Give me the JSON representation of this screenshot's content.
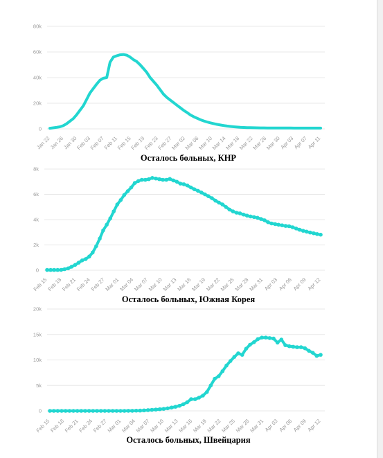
{
  "style": {
    "line_color": "#22d6d0"
  },
  "chart_data": [
    {
      "type": "line",
      "title": "Осталось больных, КНР",
      "y_ticks": [
        "0",
        "20k",
        "40k",
        "60k",
        "80k"
      ],
      "ylim": [
        0,
        80000
      ],
      "x_ticks": [
        "Jan 22",
        "Jan 26",
        "Jan 30",
        "Feb 03",
        "Feb 07",
        "Feb 11",
        "Feb 15",
        "Feb 19",
        "Feb 23",
        "Feb 27",
        "Mar 02",
        "Mar 06",
        "Mar 10",
        "Mar 14",
        "Mar 18",
        "Mar 22",
        "Mar 26",
        "Mar 30",
        "Apr 03",
        "Apr 07",
        "Apr 11"
      ],
      "markers": false,
      "grid": true,
      "series": [
        {
          "values": [
            500,
            800,
            1200,
            1600,
            2500,
            4000,
            6000,
            8000,
            11000,
            14500,
            18000,
            23000,
            28000,
            31500,
            35000,
            38000,
            39500,
            40000,
            52000,
            56000,
            57000,
            57800,
            58000,
            57500,
            56000,
            54000,
            52500,
            50000,
            47000,
            44000,
            40000,
            37000,
            34000,
            30500,
            27000,
            24500,
            22500,
            20500,
            18500,
            16500,
            14500,
            12800,
            11000,
            9500,
            8300,
            7200,
            6200,
            5400,
            4700,
            4100,
            3500,
            3000,
            2600,
            2200,
            1900,
            1600,
            1400,
            1200,
            1100,
            1000,
            900,
            850,
            800,
            780,
            750,
            720,
            700,
            680,
            670,
            660,
            650,
            640,
            630,
            620,
            610,
            600,
            600,
            600,
            600,
            600,
            600,
            600
          ]
        }
      ]
    },
    {
      "type": "line",
      "title": "Осталось больных, Южная Корея",
      "y_ticks": [
        "0",
        "2k",
        "4k",
        "6k",
        "8k"
      ],
      "ylim": [
        0,
        8000
      ],
      "x_ticks": [
        "Feb 15",
        "Feb 18",
        "Feb 21",
        "Feb 24",
        "Feb 27",
        "Mar 01",
        "Mar 04",
        "Mar 07",
        "Mar 10",
        "Mar 13",
        "Mar 16",
        "Mar 19",
        "Mar 22",
        "Mar 25",
        "Mar 28",
        "Mar 31",
        "Apr 03",
        "Apr 06",
        "Apr 09",
        "Apr 12"
      ],
      "markers": true,
      "grid": true,
      "series": [
        {
          "values": [
            20,
            20,
            20,
            20,
            30,
            80,
            150,
            280,
            420,
            600,
            780,
            880,
            1080,
            1400,
            1900,
            2500,
            3150,
            3600,
            4100,
            4650,
            5200,
            5550,
            5950,
            6250,
            6550,
            6900,
            7050,
            7150,
            7150,
            7200,
            7300,
            7250,
            7200,
            7150,
            7150,
            7220,
            7100,
            7000,
            6850,
            6800,
            6700,
            6550,
            6400,
            6280,
            6150,
            6000,
            5850,
            5700,
            5500,
            5350,
            5200,
            5000,
            4800,
            4650,
            4550,
            4500,
            4400,
            4320,
            4250,
            4200,
            4150,
            4050,
            3950,
            3800,
            3700,
            3650,
            3600,
            3550,
            3500,
            3480,
            3400,
            3300,
            3200,
            3120,
            3050,
            2980,
            2920,
            2860,
            2810
          ]
        }
      ]
    },
    {
      "type": "line",
      "title": "Осталось больных, Швейцария",
      "y_ticks": [
        "0",
        "5k",
        "10k",
        "15k",
        "20k"
      ],
      "ylim": [
        0,
        20000
      ],
      "x_ticks": [
        "Feb 15",
        "Feb 18",
        "Feb 21",
        "Feb 24",
        "Feb 27",
        "Mar 01",
        "Mar 04",
        "Mar 07",
        "Mar 10",
        "Mar 13",
        "Mar 16",
        "Mar 19",
        "Mar 22",
        "Mar 25",
        "Mar 28",
        "Mar 31",
        "Apr 03",
        "Apr 06",
        "Apr 09",
        "Apr 12"
      ],
      "markers": true,
      "grid": true,
      "series": [
        {
          "values": [
            0,
            0,
            0,
            0,
            0,
            0,
            0,
            0,
            0,
            0,
            0,
            0,
            0,
            0,
            0,
            0,
            0,
            0,
            0,
            0,
            10,
            20,
            40,
            60,
            100,
            150,
            200,
            260,
            330,
            400,
            500,
            650,
            800,
            1000,
            1300,
            1700,
            2300,
            2300,
            2600,
            3000,
            3700,
            5000,
            6300,
            6800,
            7800,
            8900,
            9800,
            10600,
            11300,
            11000,
            12200,
            13000,
            13500,
            14100,
            14400,
            14400,
            14300,
            14200,
            13400,
            14000,
            12900,
            12700,
            12600,
            12500,
            12500,
            12300,
            11800,
            11400,
            10800,
            11000
          ]
        }
      ]
    }
  ]
}
